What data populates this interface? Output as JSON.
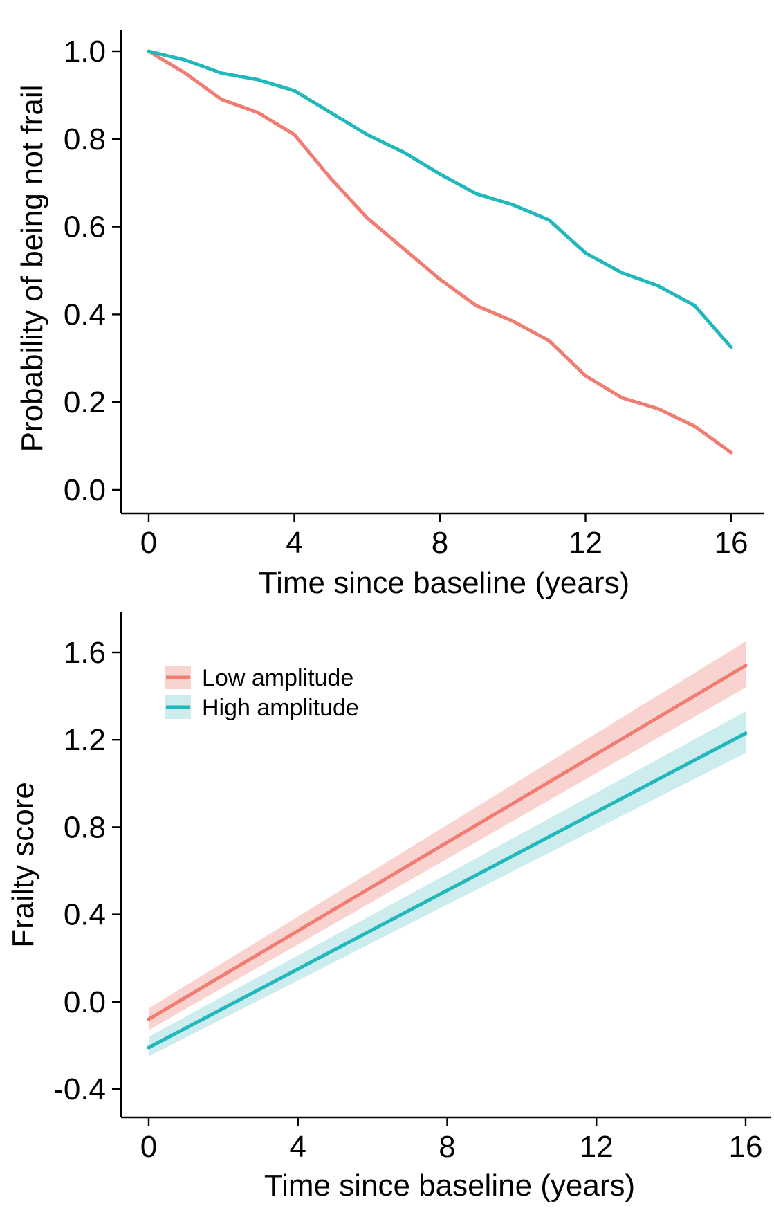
{
  "chart_data": [
    {
      "type": "line",
      "xlabel": "Time since baseline (years)",
      "ylabel": "Probability of being not frail",
      "xlim": [
        0,
        16
      ],
      "ylim": [
        0,
        1.0
      ],
      "x_ticks": [
        "0",
        "4",
        "8",
        "12",
        "16"
      ],
      "y_ticks": [
        "0.0",
        "0.2",
        "0.4",
        "0.6",
        "0.8",
        "1.0"
      ],
      "grid": false,
      "x": [
        0,
        1,
        2,
        3,
        4,
        5,
        6,
        7,
        8,
        9,
        10,
        11,
        12,
        13,
        14,
        15,
        16
      ],
      "series": [
        {
          "color": "#f07c72",
          "values": [
            1.0,
            0.95,
            0.89,
            0.86,
            0.81,
            0.71,
            0.62,
            0.55,
            0.48,
            0.42,
            0.385,
            0.34,
            0.26,
            0.21,
            0.185,
            0.145,
            0.085
          ]
        },
        {
          "color": "#21b8bb",
          "values": [
            1.0,
            0.98,
            0.95,
            0.935,
            0.91,
            0.86,
            0.81,
            0.77,
            0.72,
            0.675,
            0.65,
            0.615,
            0.54,
            0.495,
            0.465,
            0.42,
            0.325
          ]
        }
      ]
    },
    {
      "type": "line",
      "xlabel": "Time since baseline (years)",
      "ylabel": "Frailty score",
      "xlim": [
        0,
        16
      ],
      "ylim": [
        -0.4,
        1.6
      ],
      "x_ticks": [
        "0",
        "4",
        "8",
        "12",
        "16"
      ],
      "y_ticks": [
        "-0.4",
        "0.0",
        "0.4",
        "0.8",
        "1.2",
        "1.6"
      ],
      "grid": false,
      "legend_position": "top-left",
      "x": [
        0,
        16
      ],
      "series": [
        {
          "name": "Low amplitude",
          "color": "#f07c72",
          "band_color": "#f9d3d0",
          "values": [
            -0.08,
            1.54
          ],
          "lower": [
            -0.13,
            1.44
          ],
          "upper": [
            -0.03,
            1.65
          ]
        },
        {
          "name": "High amplitude",
          "color": "#21b8bb",
          "band_color": "#cdeced",
          "values": [
            -0.21,
            1.23
          ],
          "lower": [
            -0.25,
            1.14
          ],
          "upper": [
            -0.16,
            1.33
          ]
        }
      ]
    }
  ]
}
